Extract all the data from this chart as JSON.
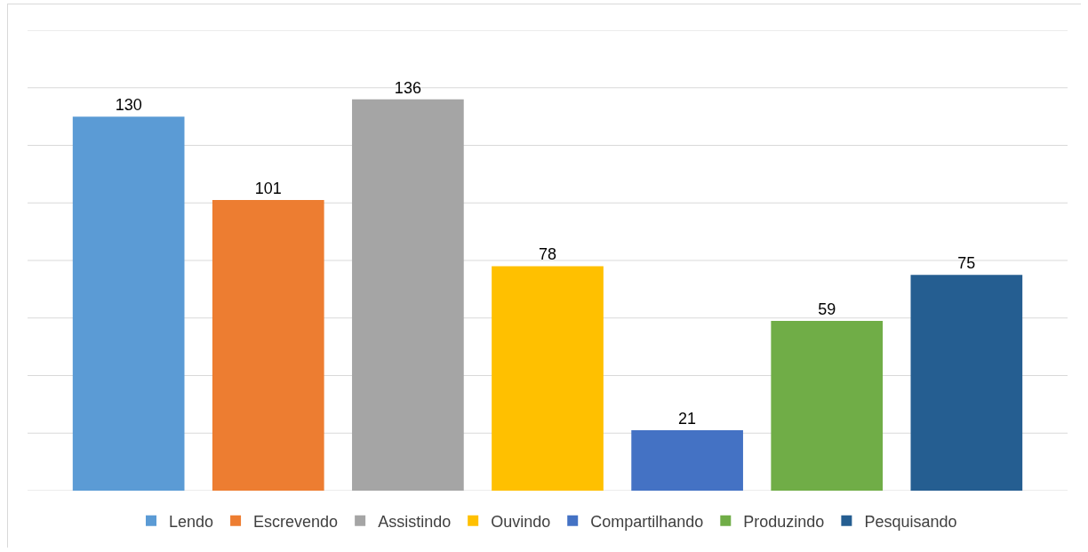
{
  "chart_data": {
    "type": "bar",
    "categories": [
      null
    ],
    "series": [
      {
        "name": "Lendo",
        "color": "#5b9bd5",
        "values": [
          130
        ]
      },
      {
        "name": "Escrevendo",
        "color": "#ed7d31",
        "values": [
          101
        ]
      },
      {
        "name": "Assistindo",
        "color": "#a5a5a5",
        "values": [
          136
        ]
      },
      {
        "name": "Ouvindo",
        "color": "#ffc000",
        "values": [
          78
        ]
      },
      {
        "name": "Compartilhando",
        "color": "#4472c4",
        "values": [
          21
        ]
      },
      {
        "name": "Produzindo",
        "color": "#70ad47",
        "values": [
          59
        ]
      },
      {
        "name": "Pesquisando",
        "color": "#255e91",
        "values": [
          75
        ]
      }
    ],
    "ylim": [
      0,
      160
    ],
    "yticks": [
      {
        "value": 0,
        "label": null
      },
      {
        "value": 20,
        "label": null
      },
      {
        "value": 40,
        "label": null
      },
      {
        "value": 60,
        "label": null
      },
      {
        "value": 80,
        "label": null
      },
      {
        "value": 100,
        "label": null
      },
      {
        "value": 120,
        "label": null
      },
      {
        "value": 140,
        "label": null
      },
      {
        "value": 160,
        "label": null
      }
    ],
    "grid": "y",
    "legend": "bottom",
    "data_labels": true
  }
}
